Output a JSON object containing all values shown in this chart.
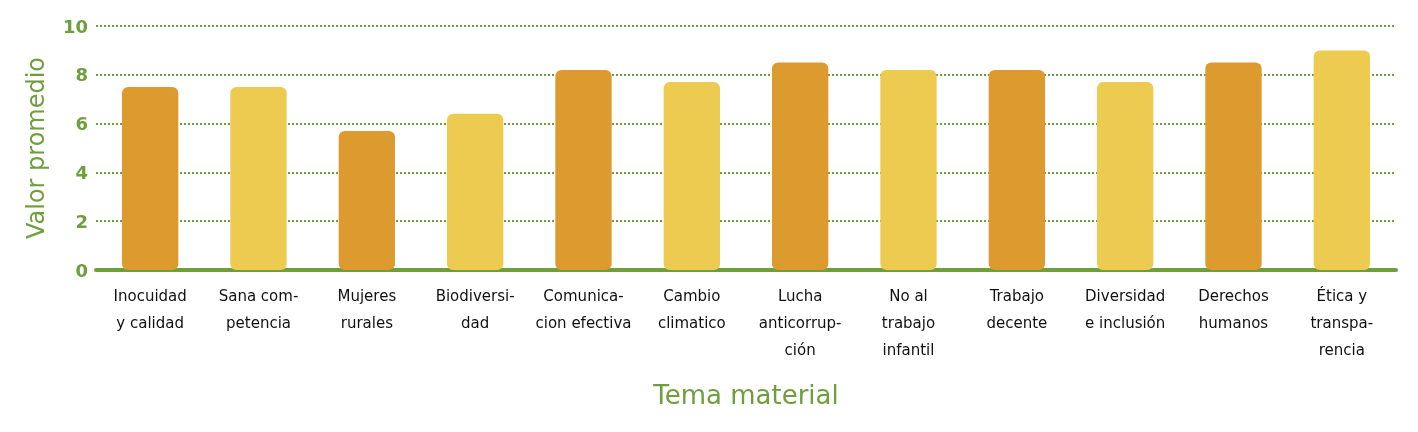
{
  "chart_data": {
    "type": "bar",
    "xlabel": "Tema material",
    "ylabel": "Valor promedio",
    "categories": [
      "Inocuidad\ny calidad",
      "Sana com-\npetencia",
      "Mujeres\nrurales",
      "Biodiversi-\ndad",
      "Comunica-\ncion efectiva",
      "Cambio\nclimatico",
      "Lucha\nanticorrup-\nción",
      "No al\ntrabajo\ninfantil",
      "Trabajo\ndecente",
      "Diversidad\ne inclusión",
      "Derechos\nhumanos",
      "Ética y\ntranspa-\nrencia"
    ],
    "values": [
      7.5,
      7.5,
      5.7,
      6.4,
      8.2,
      7.7,
      8.5,
      8.2,
      8.2,
      7.7,
      8.5,
      9.0
    ],
    "colors": [
      "#dd9a2e",
      "#eccb50",
      "#dd9a2e",
      "#eccb50",
      "#dd9a2e",
      "#eccb50",
      "#dd9a2e",
      "#eccb50",
      "#dd9a2e",
      "#eccb50",
      "#dd9a2e",
      "#eccb50"
    ],
    "ylim": [
      0,
      10
    ],
    "yticks": [
      0,
      2,
      4,
      6,
      8,
      10
    ],
    "grid": "y"
  }
}
